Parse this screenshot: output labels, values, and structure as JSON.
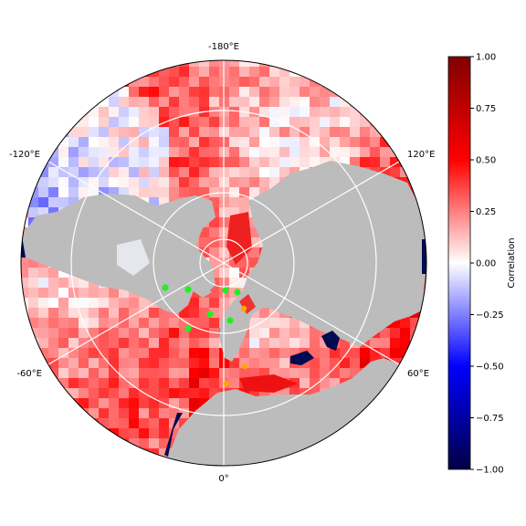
{
  "map": {
    "projection": "north-polar-stereographic",
    "graticule": "on",
    "land_color": "#bcbcbc",
    "lake_color": "#000a50",
    "meridian_labels": [
      {
        "id": "lon-m180",
        "text": "-180°E"
      },
      {
        "id": "lon-120",
        "text": "120°E"
      },
      {
        "id": "lon-60",
        "text": "60°E"
      },
      {
        "id": "lon-0",
        "text": "0°"
      },
      {
        "id": "lon-m60",
        "text": "-60°E"
      },
      {
        "id": "lon-m120",
        "text": "-120°E"
      }
    ],
    "markers": {
      "green": {
        "color": "#22ee22",
        "count": 7
      },
      "orange": {
        "color": "#ffa500",
        "count": 3
      }
    }
  },
  "colorbar": {
    "label": "Correlation",
    "cmap": "seismic",
    "range": [
      -1.0,
      1.0
    ],
    "ticks": [
      "1.00",
      "0.75",
      "0.50",
      "0.25",
      "0.00",
      "−0.25",
      "−0.50",
      "−0.75",
      "−1.00"
    ],
    "tick_values": [
      1.0,
      0.75,
      0.5,
      0.25,
      0.0,
      -0.25,
      -0.5,
      -0.75,
      -1.0
    ]
  }
}
